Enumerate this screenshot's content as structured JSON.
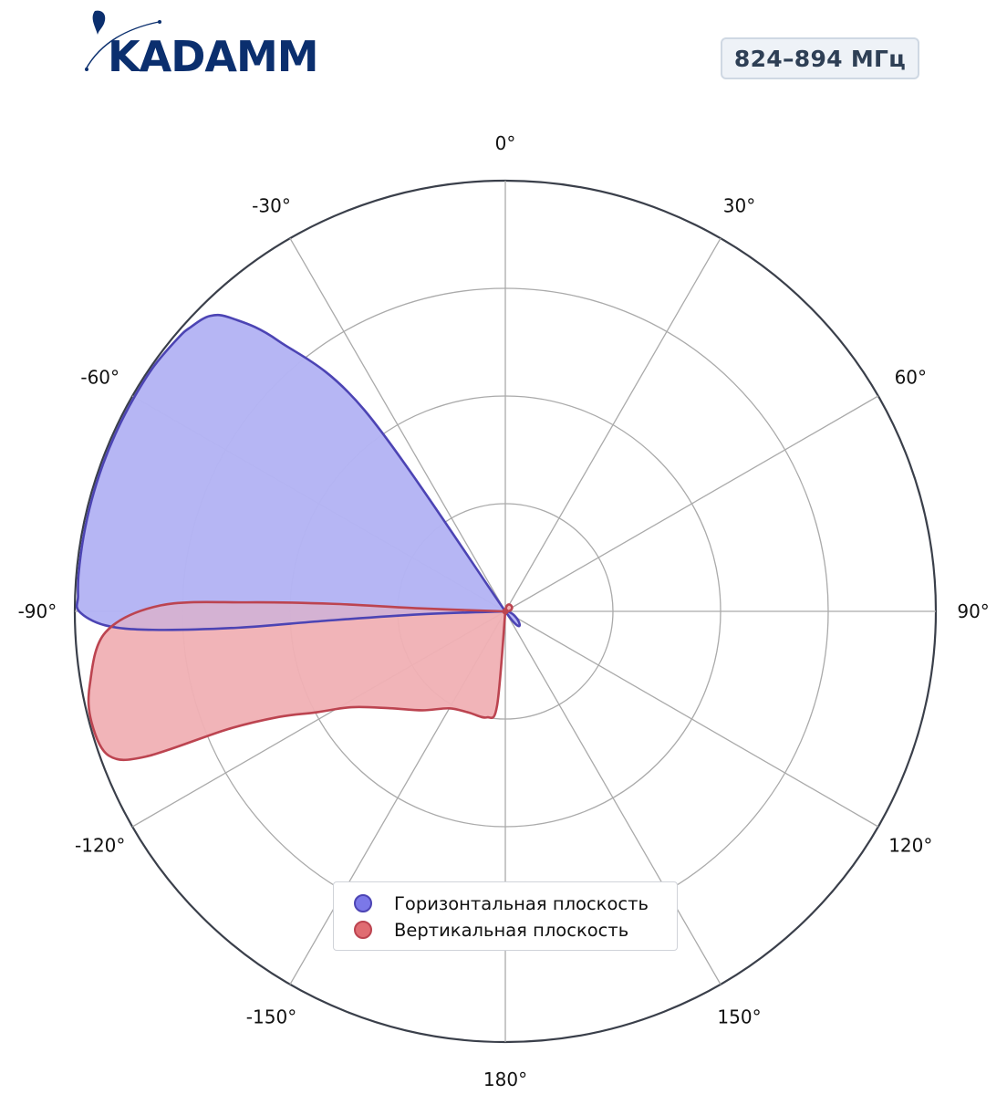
{
  "header": {
    "logo_text": "KADAMM",
    "band_label": "824–894 МГц"
  },
  "colors": {
    "horizontal_fill": "#b4b4f4",
    "horizontal_stroke": "#4c44b4",
    "vertical_fill": "#f0b0b4",
    "vertical_stroke": "#bc4450",
    "logo": "#0b2f6e",
    "axis": "#3a3f4a",
    "grid": "#aaaaaa"
  },
  "chart_data": {
    "type": "polar-area",
    "angle_ticks": [
      {
        "deg": 0,
        "label": "0°"
      },
      {
        "deg": 30,
        "label": "30°"
      },
      {
        "deg": 60,
        "label": "60°"
      },
      {
        "deg": 90,
        "label": "90°"
      },
      {
        "deg": 120,
        "label": "120°"
      },
      {
        "deg": 150,
        "label": "150°"
      },
      {
        "deg": 180,
        "label": "180°"
      },
      {
        "deg": -150,
        "label": "-150°"
      },
      {
        "deg": -120,
        "label": "-120°"
      },
      {
        "deg": -90,
        "label": "-90°"
      },
      {
        "deg": -60,
        "label": "-60°"
      },
      {
        "deg": -30,
        "label": "-30°"
      }
    ],
    "radial_range": [
      0,
      1
    ],
    "radial_rings": [
      0.25,
      0.5,
      0.75,
      1.0
    ],
    "legend_placement": "bottom-center",
    "series": [
      {
        "name": "Горизонтальная плоскость",
        "points": [
          {
            "angle": -30,
            "r": 0.0
          },
          {
            "angle": -35,
            "r": 0.57
          },
          {
            "angle": -40,
            "r": 0.82
          },
          {
            "angle": -43,
            "r": 0.93
          },
          {
            "angle": -45,
            "r": 0.97
          },
          {
            "angle": -48,
            "r": 0.985
          },
          {
            "angle": -50,
            "r": 0.99
          },
          {
            "angle": -55,
            "r": 0.995
          },
          {
            "angle": -60,
            "r": 0.995
          },
          {
            "angle": -65,
            "r": 0.995
          },
          {
            "angle": -70,
            "r": 0.995
          },
          {
            "angle": -75,
            "r": 0.995
          },
          {
            "angle": -80,
            "r": 0.995
          },
          {
            "angle": -85,
            "r": 0.995
          },
          {
            "angle": -88,
            "r": 0.993
          },
          {
            "angle": -90,
            "r": 0.99
          },
          {
            "angle": -92,
            "r": 0.93
          },
          {
            "angle": -93,
            "r": 0.82
          },
          {
            "angle": -93.5,
            "r": 0.62
          },
          {
            "angle": -93,
            "r": 0.42
          },
          {
            "angle": -92,
            "r": 0.2
          },
          {
            "angle": -90,
            "r": 0.0
          }
        ]
      },
      {
        "name": "Вертикальная плоскость",
        "points": [
          {
            "angle": -90,
            "r": 0.0
          },
          {
            "angle": -88,
            "r": 0.2
          },
          {
            "angle": -87.5,
            "r": 0.4
          },
          {
            "angle": -88,
            "r": 0.6
          },
          {
            "angle": -89,
            "r": 0.8
          },
          {
            "angle": -93,
            "r": 0.93
          },
          {
            "angle": -100,
            "r": 0.98
          },
          {
            "angle": -105,
            "r": 0.995
          },
          {
            "angle": -110,
            "r": 0.98
          },
          {
            "angle": -112,
            "r": 0.9
          },
          {
            "angle": -113,
            "r": 0.7
          },
          {
            "angle": -115,
            "r": 0.58
          },
          {
            "angle": -118,
            "r": 0.5
          },
          {
            "angle": -122,
            "r": 0.42
          },
          {
            "angle": -130,
            "r": 0.35
          },
          {
            "angle": -140,
            "r": 0.3
          },
          {
            "angle": -150,
            "r": 0.26
          },
          {
            "angle": -160,
            "r": 0.25
          },
          {
            "angle": -170,
            "r": 0.25
          },
          {
            "angle": -175,
            "r": 0.22
          },
          {
            "angle": -180,
            "r": 0.0
          }
        ]
      }
    ]
  }
}
